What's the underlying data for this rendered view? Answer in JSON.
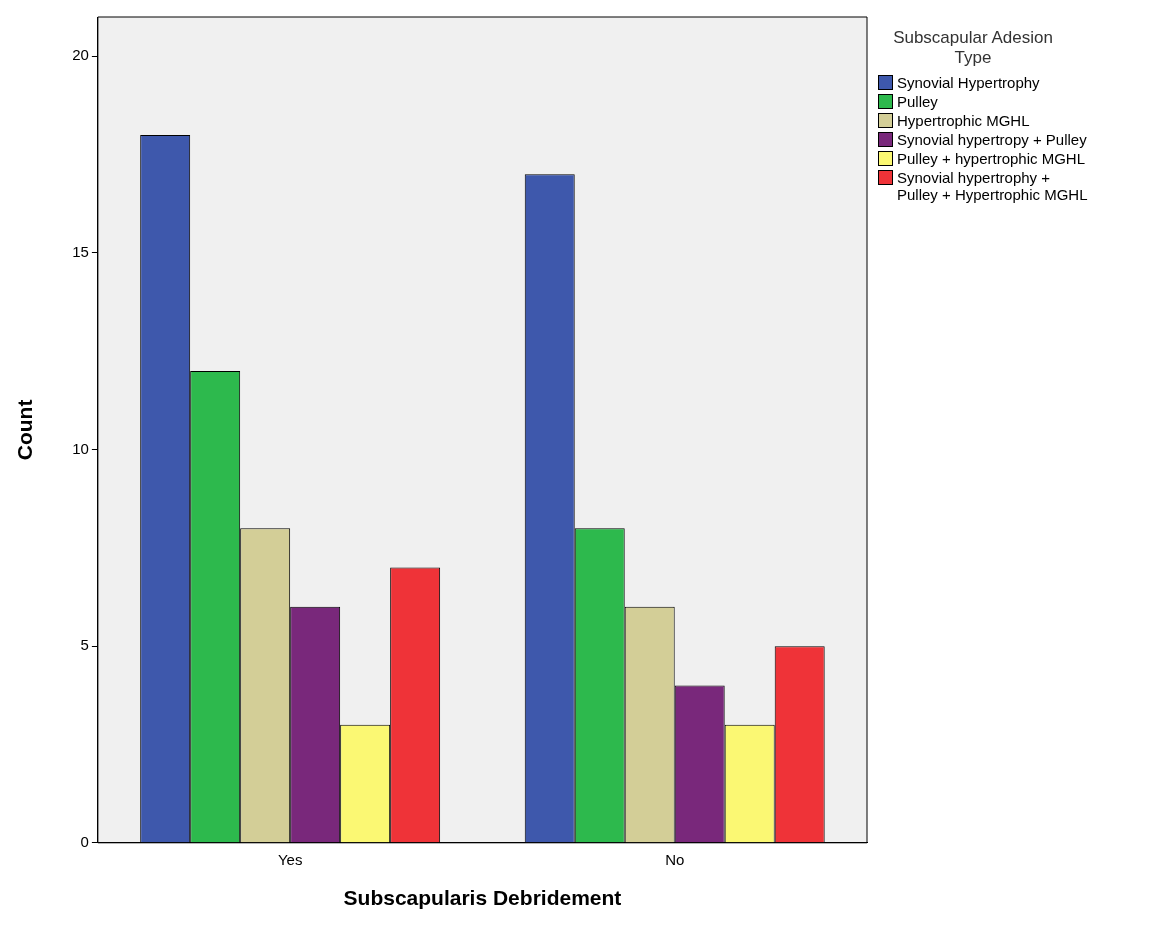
{
  "chart_data": {
    "type": "bar",
    "xlabel": "Subscapularis Debridement",
    "ylabel": "Count",
    "legend_title": "Subscapular Adesion Type",
    "legend": "top right",
    "grid": false,
    "categories": [
      "Yes",
      "No"
    ],
    "ylim": [
      0,
      21
    ],
    "yticks": [
      0,
      5,
      10,
      15,
      20
    ],
    "series": [
      {
        "name": "Synovial Hypertrophy",
        "color": "#3e58ac",
        "values": [
          18,
          17
        ]
      },
      {
        "name": "Pulley",
        "color": "#2db94d",
        "values": [
          12,
          8
        ]
      },
      {
        "name": "Hypertrophic MGHL",
        "color": "#d3ce97",
        "values": [
          8,
          6
        ]
      },
      {
        "name": "Synovial hypertropy + Pulley",
        "color": "#79287b",
        "values": [
          6,
          4
        ]
      },
      {
        "name": "Pulley + hypertrophic MGHL",
        "color": "#fbf873",
        "values": [
          3,
          3
        ]
      },
      {
        "name": "Synovial hypertrophy + Pulley + Hypertrophic MGHL",
        "color": "#ef3338",
        "values": [
          7,
          5
        ]
      }
    ]
  }
}
